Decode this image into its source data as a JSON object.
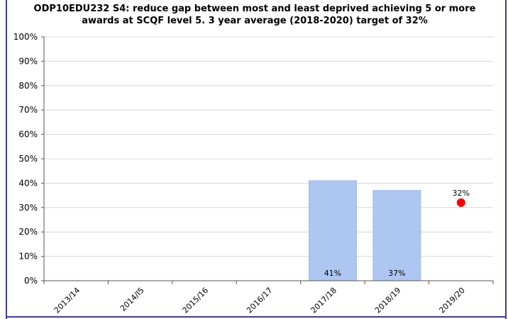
{
  "chart_data": {
    "type": "bar",
    "title_line1": "ODP10EDU232 S4: reduce gap between most and least deprived achieving 5 or more",
    "title_line2": "awards at SCQF level 5. 3 year average (2018-2020) target of 32%",
    "categories": [
      "2013/14",
      "2014/I5",
      "2015/16",
      "2016/17",
      "2017/18",
      "2018/19",
      "2019/20"
    ],
    "series": [
      {
        "type": "bar",
        "values": [
          null,
          null,
          null,
          null,
          41,
          37,
          null
        ],
        "color": "#aec7f2",
        "border": "#9bb8ea"
      },
      {
        "type": "point",
        "values": [
          null,
          null,
          null,
          null,
          null,
          null,
          32
        ],
        "color": "#ff0000"
      }
    ],
    "data_labels": {
      "2017/18": "41%",
      "2018/19": "37%",
      "2019/20": "32%"
    },
    "yticks": [
      "0%",
      "10%",
      "20%",
      "30%",
      "40%",
      "50%",
      "60%",
      "70%",
      "80%",
      "90%",
      "100%"
    ],
    "ylim": [
      0,
      100
    ],
    "grid": true,
    "legend": "none"
  }
}
